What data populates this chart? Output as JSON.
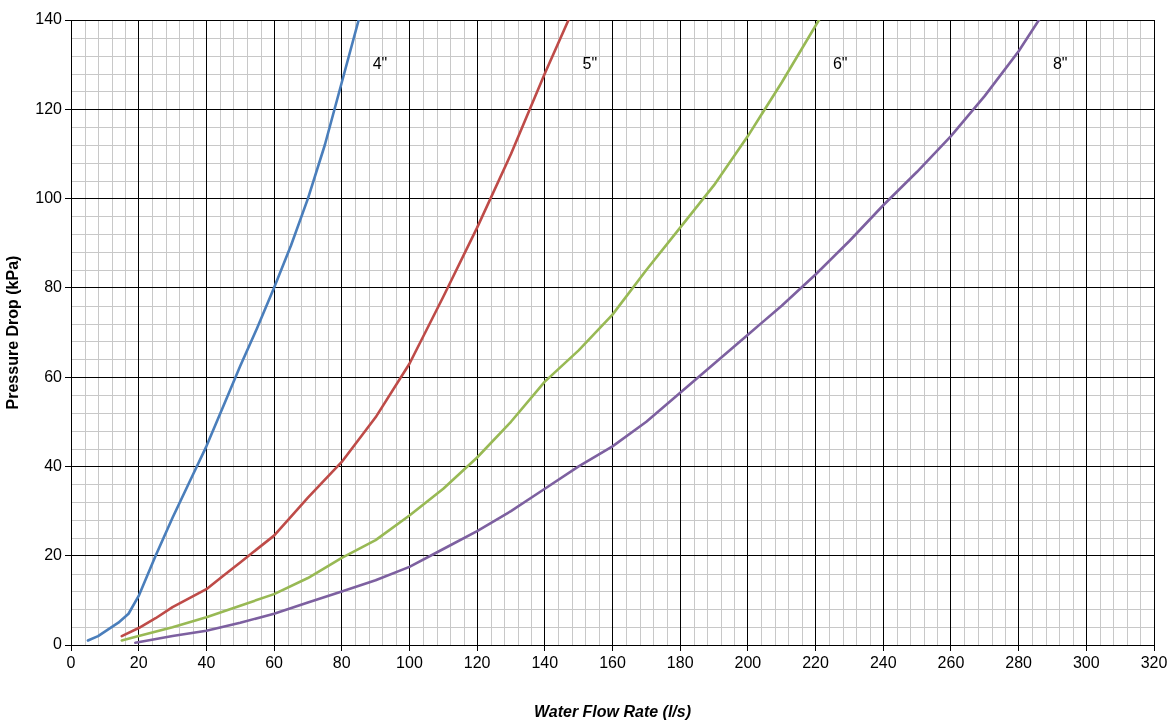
{
  "chart_data": {
    "type": "line",
    "xlabel": "Water Flow Rate (l/s)",
    "ylabel": "Pressure Drop (kPa)",
    "xlim": [
      0,
      320
    ],
    "xticks": [
      0,
      20,
      40,
      60,
      80,
      100,
      120,
      140,
      160,
      180,
      200,
      220,
      240,
      260,
      280,
      300,
      320
    ],
    "ylim": [
      0,
      140
    ],
    "yticks": [
      0,
      20,
      40,
      60,
      80,
      100,
      120,
      140
    ],
    "grid": true,
    "legend": false,
    "marker": "none",
    "line_style": "solid",
    "series": [
      {
        "name": "4\"",
        "color": "#4a7ebb",
        "x": [
          5,
          8,
          11,
          14,
          17,
          20,
          25,
          30,
          35,
          40,
          45,
          50,
          55,
          60,
          65,
          70,
          75,
          80,
          85
        ],
        "values": [
          1,
          2,
          3.5,
          5,
          7,
          11,
          20,
          28.5,
          36.5,
          44.5,
          53.5,
          62.5,
          71,
          80,
          89.5,
          100,
          112,
          126,
          140
        ]
      },
      {
        "name": "5\"",
        "color": "#be4b48",
        "x": [
          15,
          20,
          25,
          30,
          35,
          40,
          45,
          50,
          60,
          70,
          80,
          90,
          100,
          110,
          120,
          130,
          140,
          147
        ],
        "values": [
          2,
          3.8,
          6,
          8.5,
          10.5,
          12.5,
          15.5,
          18.5,
          24.5,
          33,
          41,
          51,
          63,
          78,
          93.5,
          110,
          128,
          140
        ]
      },
      {
        "name": "6\"",
        "color": "#98b954",
        "x": [
          15,
          20,
          30,
          40,
          50,
          60,
          70,
          80,
          90,
          100,
          110,
          120,
          130,
          140,
          150,
          160,
          170,
          180,
          190,
          200,
          210,
          221
        ],
        "values": [
          1,
          2,
          4,
          6.2,
          8.8,
          11.4,
          15,
          19.5,
          23.5,
          29,
          35,
          42,
          50,
          59,
          66,
          74,
          84,
          93.5,
          103,
          114,
          126,
          140
        ]
      },
      {
        "name": "8\"",
        "color": "#7d60a0",
        "x": [
          19,
          30,
          40,
          50,
          60,
          70,
          80,
          90,
          100,
          110,
          120,
          130,
          140,
          150,
          160,
          170,
          180,
          190,
          200,
          210,
          220,
          230,
          240,
          250,
          260,
          270,
          280,
          286
        ],
        "values": [
          0.5,
          2,
          3.2,
          5,
          7,
          9.5,
          12,
          14.5,
          17.5,
          21.5,
          25.5,
          30,
          35,
          40,
          44.5,
          50,
          56.5,
          63,
          69.5,
          76,
          83,
          90.5,
          98.5,
          106,
          114,
          123,
          133,
          140
        ]
      }
    ]
  }
}
